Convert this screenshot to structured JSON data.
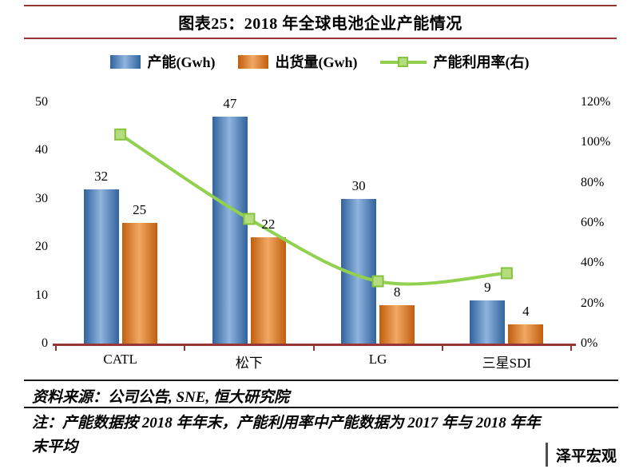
{
  "colors": {
    "axis": "#943634",
    "footer_rule": "#1a1a1a",
    "line": "#92D050",
    "marker_fill": "#B5DD7E",
    "marker_stroke": "#86C440"
  },
  "header": {
    "title": "图表25：2018 年全球电池企业产能情况"
  },
  "chart_data": {
    "type": "bar",
    "title": "图表25：2018 年全球电池企业产能情况",
    "categories": [
      "CATL",
      "松下",
      "LG",
      "三星SDI"
    ],
    "series": [
      {
        "name": "产能(Gwh)",
        "type": "bar",
        "axis": "left",
        "color": "#4F81BD",
        "color_light": "#8FB4DF",
        "color_dark": "#31639C",
        "values": [
          32,
          47,
          30,
          9
        ]
      },
      {
        "name": "出货量(Gwh)",
        "type": "bar",
        "axis": "left",
        "color": "#E8822D",
        "color_light": "#F2A864",
        "color_dark": "#C05E0E",
        "values": [
          25,
          22,
          8,
          4
        ]
      },
      {
        "name": "产能利用率(右)",
        "type": "line",
        "axis": "right",
        "color": "#92D050",
        "values": [
          104,
          62,
          31,
          35
        ]
      }
    ],
    "left_axis": {
      "min": 0,
      "max": 50,
      "step": 10,
      "ticks": [
        "0",
        "10",
        "20",
        "30",
        "40",
        "50"
      ]
    },
    "right_axis": {
      "min": 0,
      "max": 120,
      "step": 20,
      "ticks": [
        "0%",
        "20%",
        "40%",
        "60%",
        "80%",
        "100%",
        "120%"
      ]
    },
    "legend_position": "top",
    "grid": false
  },
  "footer": {
    "source": "资料来源：公司公告, SNE, 恒大研究院",
    "note": "注：产能数据按 2018 年年末，产能利用率中产能数据为 2017 年与 2018 年年末平均",
    "watermark": "泽平宏观"
  }
}
